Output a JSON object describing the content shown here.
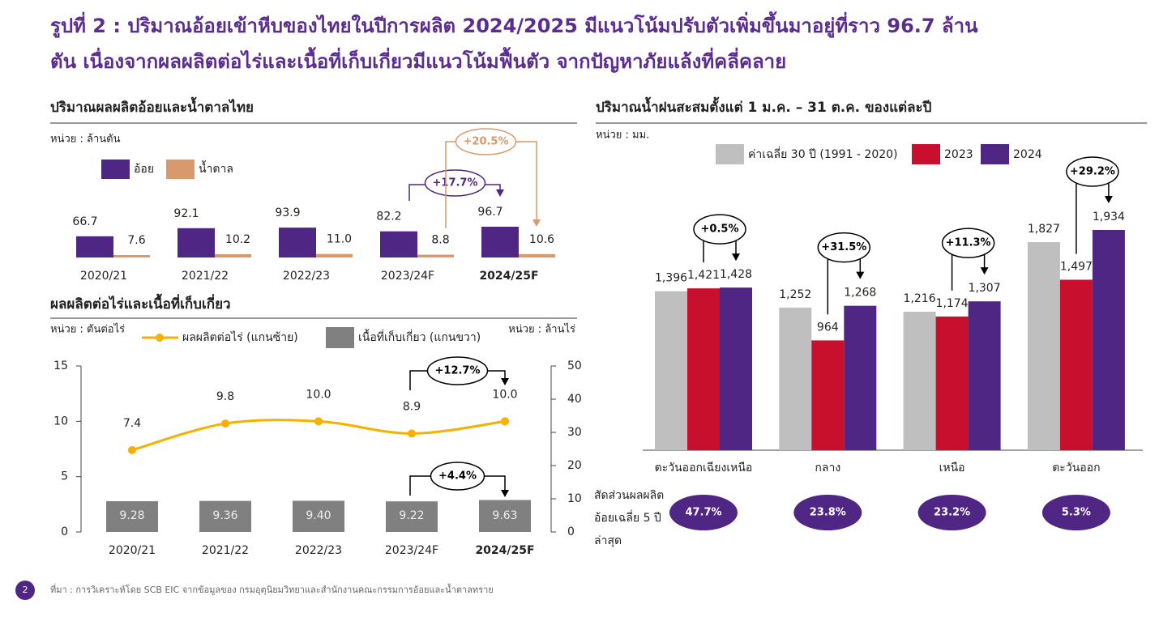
{
  "title": [
    "รูปที่ 2 : ปริมาณอ้อยเข้าหีบของไทยในปีการผลิต 2024/2025 มีแนวโน้มปรับตัวเพิ่มขึ้นมาอยู่ที่ราว 96.7 ล้าน",
    "ตัน เนื่องจากผลผลิตต่อไร่และเนื้อที่เก็บเกี่ยวมีแนวโน้มฟื้นตัว จากปัญหาภัยแล้งที่คลี่คลาย"
  ],
  "chart_data": [
    {
      "type": "bar",
      "title": "ปริมาณผลผลิตอ้อยและน้ำตาลไทย",
      "unit": "หน่วย : ล้านตัน",
      "categories": [
        "2020/21",
        "2021/22",
        "2022/23",
        "2023/24F",
        "2024/25F"
      ],
      "series": [
        {
          "name": "อ้อย",
          "color": "#4f2683",
          "values": [
            66.7,
            92.1,
            93.9,
            82.2,
            96.7
          ]
        },
        {
          "name": "น้ำตาล",
          "color": "#d8996c",
          "values": [
            7.6,
            10.2,
            11.0,
            8.8,
            10.6
          ],
          "value_labels": [
            "7.6",
            "10.2",
            "11.0",
            "8.8",
            "10.6"
          ]
        }
      ],
      "annotations": [
        "+17.7%",
        "+20.5%"
      ]
    },
    {
      "type": "combo",
      "title": "ผลผลิตต่อไร่และเนื้อที่เก็บเกี่ยว",
      "y_label": "หน่วย : ตันต่อไร่",
      "y2_label": "หน่วย : ล้านไร่",
      "categories": [
        "2020/21",
        "2021/22",
        "2022/23",
        "2023/24F",
        "2024/25F"
      ],
      "series": [
        {
          "name": "ผลผลิตต่อไร่ (แกนซ้าย)",
          "type": "line",
          "color": "#f5b000",
          "values": [
            7.4,
            9.8,
            10.0,
            8.9,
            10.0
          ],
          "value_labels": [
            "7.4",
            "9.8",
            "10.0",
            "8.9",
            "10.0"
          ]
        },
        {
          "name": "เนื้อที่เก็บเกี่ยว (แกนขวา)",
          "type": "bar",
          "axis": "y2",
          "color": "#808080",
          "values": [
            9.28,
            9.36,
            9.4,
            9.22,
            9.63
          ],
          "value_labels": [
            "9.28",
            "9.36",
            "9.40",
            "9.22",
            "9.63"
          ]
        }
      ],
      "ylim": [
        0,
        15
      ],
      "yticks": [
        0,
        5,
        10,
        15
      ],
      "y2lim": [
        0,
        50
      ],
      "y2ticks": [
        0,
        10,
        20,
        30,
        40,
        50
      ],
      "annotations": [
        "+12.7%",
        "+4.4%"
      ]
    },
    {
      "type": "bar",
      "title": "ปริมาณน้ำฝนสะสมตั้งแต่ 1 ม.ค. – 31 ต.ค. ของแต่ละปี",
      "unit": "หน่วย : มม.",
      "categories": [
        "ตะวันออกเฉียงเหนือ",
        "กลาง",
        "เหนือ",
        "ตะวันออก"
      ],
      "series": [
        {
          "name": "ค่าเฉลี่ย 30 ปี (1991 - 2020)",
          "color": "#bfbfbf",
          "values": [
            1396,
            1252,
            1216,
            1827
          ],
          "value_labels": [
            "1,396",
            "1,252",
            "1,216",
            "1,827"
          ]
        },
        {
          "name": "2023",
          "color": "#c8102e",
          "values": [
            1421,
            964,
            1174,
            1497
          ],
          "value_labels": [
            "1,421",
            "964",
            "1,174",
            "1,497"
          ]
        },
        {
          "name": "2024",
          "color": "#4f2683",
          "values": [
            1428,
            1268,
            1307,
            1934
          ],
          "value_labels": [
            "1,428",
            "1,268",
            "1,307",
            "1,934"
          ]
        }
      ],
      "annotations": [
        "+0.5%",
        "+31.5%",
        "+11.3%",
        "+29.2%"
      ],
      "share": {
        "label": "สัดส่วนผลผลิตอ้อยเฉลี่ย 5 ปีล่าสุด",
        "values": [
          47.7,
          23.8,
          23.2,
          5.3
        ],
        "value_labels": [
          "47.7%",
          "23.8%",
          "23.2%",
          "5.3%"
        ]
      }
    }
  ],
  "footer": {
    "page": "2",
    "source": "ที่มา : การวิเคราะห์โดย SCB EIC จากข้อมูลของ กรมอุตุนิยมวิทยาและสำนักงานคณะกรรมการอ้อยและน้ำตาลทราย"
  }
}
